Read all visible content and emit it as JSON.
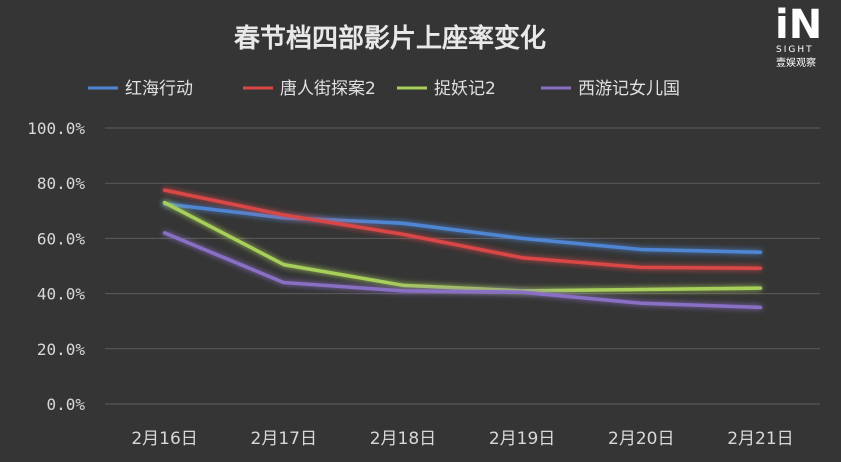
{
  "logo": {
    "mark": "iN",
    "sub": "SIGHT",
    "cn": "壹娱观察"
  },
  "chart_data": {
    "type": "line",
    "title": "春节档四部影片上座率变化",
    "xlabel": "",
    "ylabel": "",
    "categories": [
      "2月16日",
      "2月17日",
      "2月18日",
      "2月19日",
      "2月20日",
      "2月21日"
    ],
    "ylim": [
      0,
      100
    ],
    "yticks": [
      "0.0%",
      "20.0%",
      "40.0%",
      "60.0%",
      "80.0%",
      "100.0%"
    ],
    "ytick_values": [
      0,
      20,
      40,
      60,
      80,
      100
    ],
    "grid": true,
    "legend_position": "top",
    "series": [
      {
        "name": "红海行动",
        "color": "#4f86d4",
        "values": [
          72.5,
          67.5,
          65.5,
          60,
          56,
          55
        ]
      },
      {
        "name": "唐人街探案2",
        "color": "#d94646",
        "values": [
          77.5,
          68.5,
          61.5,
          53,
          49.5,
          49.2
        ]
      },
      {
        "name": "捉妖记2",
        "color": "#a8cf5a",
        "values": [
          73,
          50.5,
          43,
          41,
          41.5,
          42
        ]
      },
      {
        "name": "西游记女儿国",
        "color": "#8a6fc4",
        "values": [
          62,
          44,
          41,
          40.5,
          36.5,
          35
        ]
      }
    ]
  }
}
